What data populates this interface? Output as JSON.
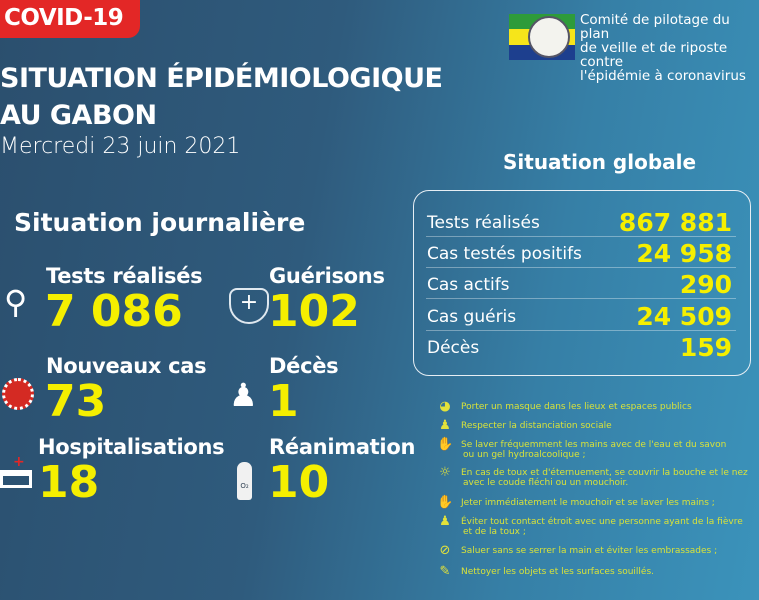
{
  "header": {
    "badge": "COVID-19",
    "title_line1": "SITUATION ÉPIDÉMIOLOGIQUE",
    "title_line2": "AU GABON",
    "date": "Mercredi 23 juin 2021"
  },
  "logo": {
    "seal_text": "RÉPUBLIQUE GABONAISE",
    "flag_colors": [
      "#2e9b3a",
      "#f6e51a",
      "#1d3f8e"
    ],
    "committee_lines": [
      "Comité de pilotage du plan",
      "de veille et de riposte contre",
      "l'épidémie à coronavirus"
    ]
  },
  "daily": {
    "title": "Situation journalière",
    "items": [
      {
        "label": "Tests réalisés",
        "value": "7 086",
        "icon": "magnifier-icon"
      },
      {
        "label": "Guérisons",
        "value": "102",
        "icon": "shield-cross-virus-icon"
      },
      {
        "label": "Nouveaux cas",
        "value": "73",
        "icon": "virus-icon"
      },
      {
        "label": "Décès",
        "value": "1",
        "icon": "person-cross-icon"
      },
      {
        "label": "Hospitalisations",
        "value": "18",
        "icon": "hospital-bed-icon"
      },
      {
        "label": "Réanimation",
        "value": "10",
        "icon": "oxygen-tank-icon"
      }
    ]
  },
  "global": {
    "title": "Situation globale",
    "rows": [
      {
        "label": "Tests réalisés",
        "value": "867 881"
      },
      {
        "label": "Cas testés positifs",
        "value": "24 958"
      },
      {
        "label": "Cas actifs",
        "value": "290"
      },
      {
        "label": "Cas guéris",
        "value": "24 509"
      },
      {
        "label": "Décès",
        "value": "159"
      }
    ]
  },
  "tips": [
    {
      "line1": "Porter un masque dans les lieux et espaces publics",
      "line2": "",
      "icon": "mask-icon"
    },
    {
      "line1": "Respecter la distanciation sociale",
      "line2": "",
      "icon": "distancing-icon"
    },
    {
      "line1": "Se laver fréquemment les mains avec de l'eau et du savon",
      "line2": "ou un gel hydroalcoolique ;",
      "icon": "handwash-icon"
    },
    {
      "line1": "En cas de toux et d'éternuement, se couvrir la bouche et le nez",
      "line2": "avec le coude fléchi ou un mouchoir.",
      "icon": "cough-icon"
    },
    {
      "line1": "Jeter immédiatement le mouchoir et se laver les mains ;",
      "line2": "",
      "icon": "handwash-icon"
    },
    {
      "line1": "Éviter tout contact étroit avec une personne ayant de la fièvre",
      "line2": "et de la toux ;",
      "icon": "distancing-icon"
    },
    {
      "line1": "Saluer sans se serrer la main et éviter les embrassades ;",
      "line2": "",
      "icon": "no-handshake-icon"
    },
    {
      "line1": "Nettoyer les objets et les surfaces souillés.",
      "line2": "",
      "icon": "cleaning-icon"
    }
  ],
  "colors": {
    "accent_yellow": "#f5ef00",
    "badge_red": "#e32726"
  }
}
